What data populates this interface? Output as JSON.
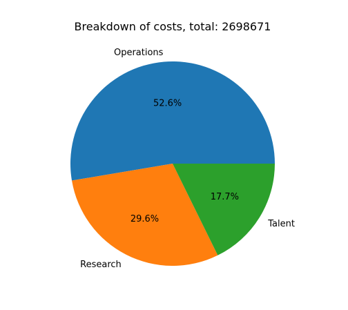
{
  "chart_data": {
    "type": "pie",
    "title": "Breakdown of costs, total: 2698671",
    "slices": [
      {
        "label": "Operations",
        "percent": 52.6,
        "display": "52.6%",
        "color": "#1f77b4"
      },
      {
        "label": "Research",
        "percent": 29.6,
        "display": "29.6%",
        "color": "#ff7f0e"
      },
      {
        "label": "Talent",
        "percent": 17.7,
        "display": "17.7%",
        "color": "#2ca02c"
      }
    ],
    "start_angle_deg": 0,
    "direction": "counterclockwise",
    "legend": "none"
  }
}
